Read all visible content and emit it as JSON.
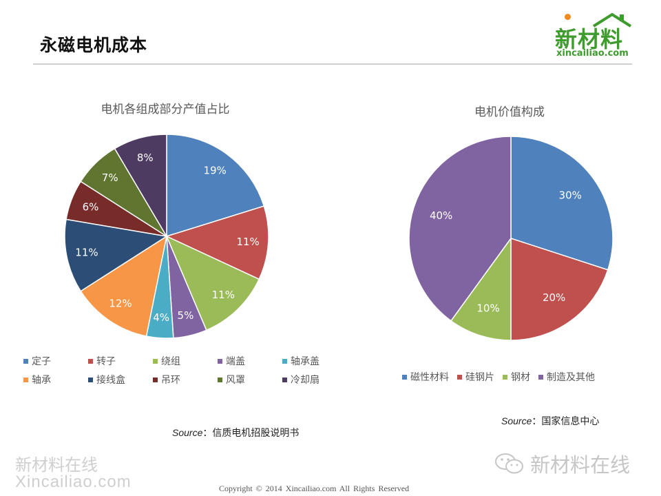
{
  "page": {
    "title": "永磁电机成本",
    "logo_cn": "新材料",
    "logo_en": "xincailiao.com"
  },
  "chart_data": [
    {
      "type": "pie",
      "title": "电机各组成部分产值占比",
      "categories": [
        "定子",
        "转子",
        "绕组",
        "端盖",
        "轴承盖",
        "轴承",
        "接线盒",
        "吊环",
        "风罩",
        "冷却扇"
      ],
      "values": [
        19,
        11,
        11,
        5,
        4,
        12,
        11,
        6,
        7,
        8
      ],
      "labels": [
        "19%",
        "11%",
        "11%",
        "5%",
        "4%",
        "12%",
        "11%",
        "6%",
        "7%",
        "8%"
      ],
      "colors": [
        "#4f81bd",
        "#c0504d",
        "#9bbb59",
        "#8064a2",
        "#4bacc6",
        "#f79646",
        "#2c4d75",
        "#772c2a",
        "#5f7530",
        "#4d3b62"
      ],
      "legend_position": "bottom",
      "source_label": "Source",
      "source_text": "：信质电机招股说明书"
    },
    {
      "type": "pie",
      "title": "电机价值构成",
      "categories": [
        "磁性材料",
        "硅钢片",
        "钢材",
        "制造及其他"
      ],
      "values": [
        30,
        20,
        10,
        40
      ],
      "labels": [
        "30%",
        "20%",
        "10%",
        "40%"
      ],
      "colors": [
        "#4f81bd",
        "#c0504d",
        "#9bbb59",
        "#8064a2"
      ],
      "legend_position": "bottom",
      "source_label": "Source",
      "source_text": "：国家信息中心"
    }
  ],
  "watermarks": {
    "left_cn": "新材料在线",
    "left_en": "Xincailiao.com",
    "right": "新材料在线"
  },
  "footer": {
    "copyright": "Copyright © 2014   Xincailiao.com    All Rights Reserved"
  },
  "icons": {
    "wechat": "wechat-icon",
    "logo_roof": "house-roof-icon"
  }
}
